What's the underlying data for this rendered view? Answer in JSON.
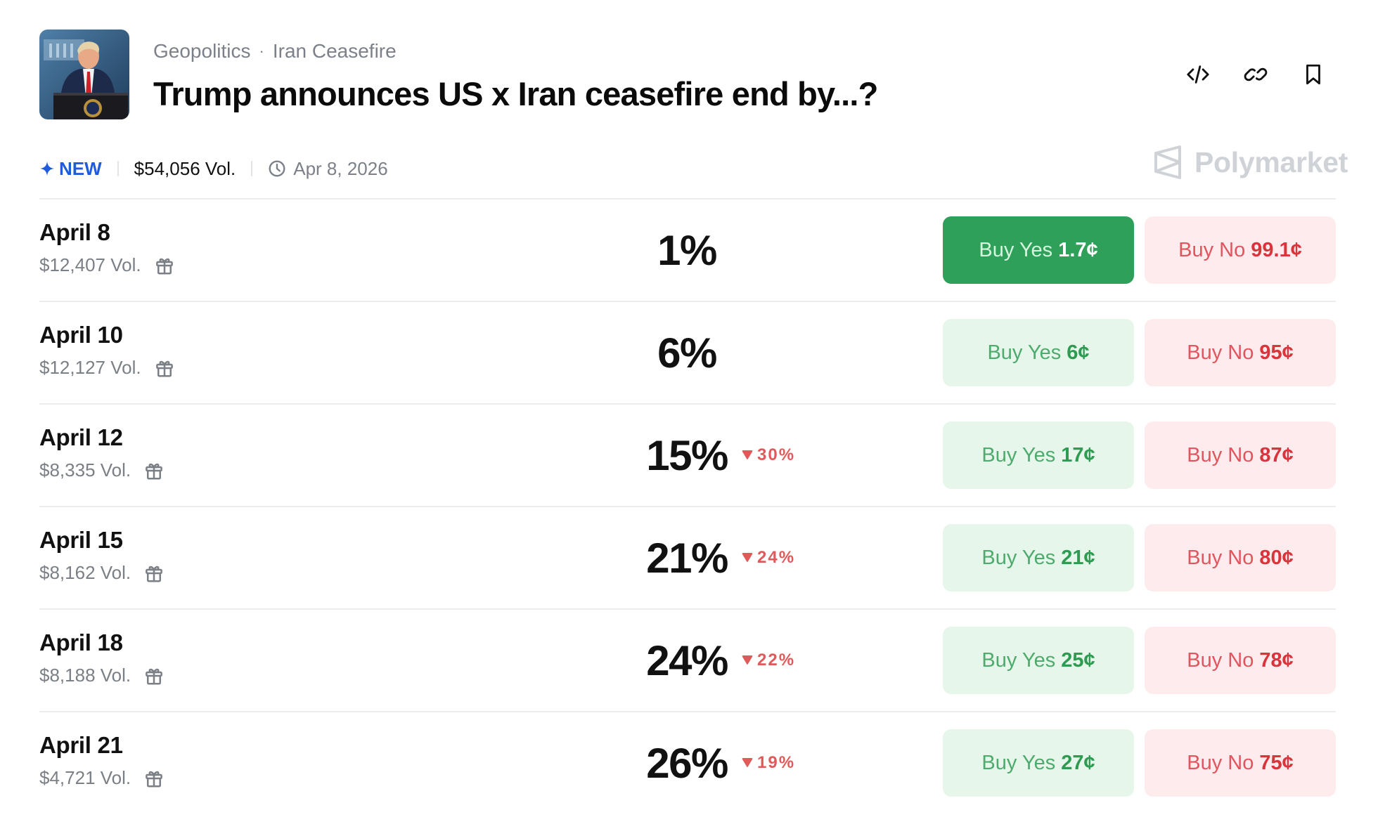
{
  "header": {
    "breadcrumb": [
      "Geopolitics",
      "Iran Ceasefire"
    ],
    "breadcrumb_separator": "·",
    "title": "Trump announces US x Iran ceasefire end by...?",
    "thumbnail_icon": "trump-press-photo",
    "actions": [
      {
        "name": "embed",
        "icon": "code-icon"
      },
      {
        "name": "copy-link",
        "icon": "link-icon"
      },
      {
        "name": "bookmark",
        "icon": "bookmark-icon"
      }
    ]
  },
  "meta": {
    "new_label": "NEW",
    "volume": "$54,056 Vol.",
    "date": "Apr 8, 2026"
  },
  "brand": {
    "name": "Polymarket"
  },
  "colors": {
    "accent_blue": "#1f5bdb",
    "yes_green": "#2ea05a",
    "yes_light_bg": "#e6f6ea",
    "no_red": "#d9333c",
    "no_light_bg": "#fdebed",
    "delta_red": "#e05a5a"
  },
  "outcomes": [
    {
      "date": "April 8",
      "volume": "$12,407 Vol.",
      "percent": "1%",
      "delta": "",
      "yes_label": "Buy Yes",
      "yes_price": "1.7¢",
      "no_label": "Buy No",
      "no_price": "99.1¢",
      "yes_active": true
    },
    {
      "date": "April 10",
      "volume": "$12,127 Vol.",
      "percent": "6%",
      "delta": "",
      "yes_label": "Buy Yes",
      "yes_price": "6¢",
      "no_label": "Buy No",
      "no_price": "95¢"
    },
    {
      "date": "April 12",
      "volume": "$8,335 Vol.",
      "percent": "15%",
      "delta": "30%",
      "yes_label": "Buy Yes",
      "yes_price": "17¢",
      "no_label": "Buy No",
      "no_price": "87¢"
    },
    {
      "date": "April 15",
      "volume": "$8,162 Vol.",
      "percent": "21%",
      "delta": "24%",
      "yes_label": "Buy Yes",
      "yes_price": "21¢",
      "no_label": "Buy No",
      "no_price": "80¢"
    },
    {
      "date": "April 18",
      "volume": "$8,188 Vol.",
      "percent": "24%",
      "delta": "22%",
      "yes_label": "Buy Yes",
      "yes_price": "25¢",
      "no_label": "Buy No",
      "no_price": "78¢"
    },
    {
      "date": "April 21",
      "volume": "$4,721 Vol.",
      "percent": "26%",
      "delta": "19%",
      "yes_label": "Buy Yes",
      "yes_price": "27¢",
      "no_label": "Buy No",
      "no_price": "75¢"
    }
  ]
}
